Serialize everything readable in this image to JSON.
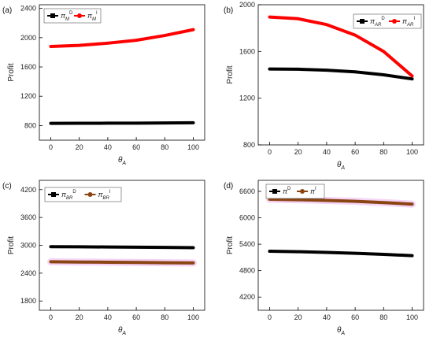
{
  "chart_data": [
    {
      "panel": "(a)",
      "type": "line",
      "xlabel": "θ_A",
      "ylabel": "Profit",
      "xlim": [
        -8,
        108
      ],
      "ylim": [
        600,
        2450
      ],
      "xticks": [
        0,
        20,
        40,
        60,
        80,
        100
      ],
      "yticks": [
        800,
        1200,
        1600,
        2000,
        2400
      ],
      "legend_position": "top-left",
      "series": [
        {
          "name": "π_M^D",
          "legend": {
            "base": "π",
            "sub": "M",
            "sup": "D"
          },
          "color": "#000000",
          "x": [
            0,
            20,
            40,
            60,
            80,
            100
          ],
          "y": [
            830,
            831,
            832,
            833,
            835,
            838
          ]
        },
        {
          "name": "π_M^I",
          "legend": {
            "base": "π",
            "sub": "M",
            "sup": "I"
          },
          "color": "#ff0000",
          "glow": false,
          "x": [
            0,
            20,
            40,
            60,
            80,
            100
          ],
          "y": [
            1880,
            1895,
            1925,
            1965,
            2030,
            2110
          ]
        }
      ]
    },
    {
      "panel": "(b)",
      "type": "line",
      "xlabel": "θ_A",
      "ylabel": "Profit",
      "xlim": [
        -8,
        108
      ],
      "ylim": [
        800,
        2000
      ],
      "xticks": [
        0,
        20,
        40,
        60,
        80,
        100
      ],
      "yticks": [
        800,
        1200,
        1600,
        2000
      ],
      "legend_position": "top-right",
      "series": [
        {
          "name": "π_AR^D",
          "legend": {
            "base": "π",
            "sub": "AR",
            "sup": "D"
          },
          "color": "#000000",
          "x": [
            0,
            20,
            40,
            60,
            80,
            100
          ],
          "y": [
            1450,
            1448,
            1440,
            1425,
            1400,
            1365
          ]
        },
        {
          "name": "π_AR^I",
          "legend": {
            "base": "π",
            "sub": "AR",
            "sup": "I"
          },
          "color": "#ff0000",
          "glow": false,
          "x": [
            0,
            20,
            40,
            60,
            80,
            100
          ],
          "y": [
            1895,
            1880,
            1830,
            1740,
            1600,
            1390
          ]
        }
      ]
    },
    {
      "panel": "(c)",
      "type": "line",
      "xlabel": "θ_A",
      "ylabel": "Profit",
      "xlim": [
        -8,
        108
      ],
      "ylim": [
        1600,
        4400
      ],
      "xticks": [
        0,
        20,
        40,
        60,
        80,
        100
      ],
      "yticks": [
        1800,
        2400,
        3000,
        3600,
        4200
      ],
      "legend_position": "top-left",
      "series": [
        {
          "name": "π_BR^D",
          "legend": {
            "base": "π",
            "sub": "BR",
            "sup": "D"
          },
          "color": "#000000",
          "x": [
            0,
            20,
            40,
            60,
            80,
            100
          ],
          "y": [
            2970,
            2968,
            2964,
            2960,
            2956,
            2950
          ]
        },
        {
          "name": "π_BR^I",
          "legend": {
            "base": "π",
            "sub": "BR",
            "sup": "I"
          },
          "color": "#8b4513",
          "glow": true,
          "x": [
            0,
            20,
            40,
            60,
            80,
            100
          ],
          "y": [
            2645,
            2640,
            2635,
            2630,
            2625,
            2620
          ]
        }
      ]
    },
    {
      "panel": "(d)",
      "type": "line",
      "xlabel": "θ_A",
      "ylabel": "Profit",
      "xlim": [
        -8,
        108
      ],
      "ylim": [
        3900,
        6850
      ],
      "xticks": [
        0,
        20,
        40,
        60,
        80,
        100
      ],
      "yticks": [
        4200,
        4800,
        5400,
        6000,
        6600
      ],
      "legend_position": "top-left",
      "series": [
        {
          "name": "π^D",
          "legend": {
            "base": "π",
            "sub": "",
            "sup": "D"
          },
          "color": "#000000",
          "x": [
            0,
            20,
            40,
            60,
            80,
            100
          ],
          "y": [
            5240,
            5230,
            5215,
            5195,
            5170,
            5140
          ]
        },
        {
          "name": "π^I",
          "legend": {
            "base": "π",
            "sub": "",
            "sup": "I"
          },
          "color": "#8b4513",
          "glow": true,
          "x": [
            0,
            20,
            40,
            60,
            80,
            100
          ],
          "y": [
            6420,
            6410,
            6395,
            6375,
            6345,
            6310
          ]
        }
      ]
    }
  ]
}
